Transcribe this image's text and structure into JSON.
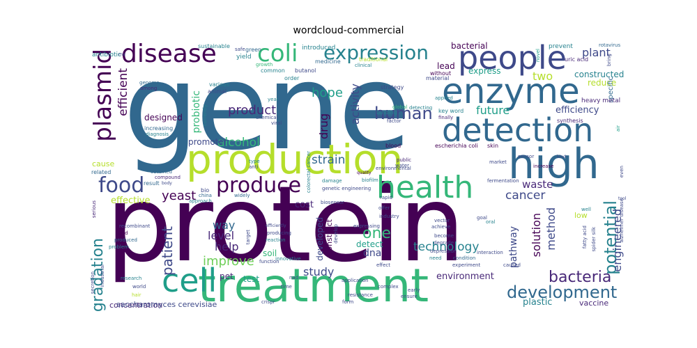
{
  "title": "wordcloud-commercial",
  "colors": {
    "purple": "#440154",
    "indigo": "#482878",
    "blue": "#3e4989",
    "steel": "#31688e",
    "teal": "#26828e",
    "seagreen": "#1f9e89",
    "green": "#35b779",
    "lime": "#6ece58",
    "yellowgreen": "#b5de2b",
    "yellow": "#fde725"
  },
  "words": [
    {
      "text": "gene"
    },
    {
      "text": "protein"
    },
    {
      "text": "treatment"
    },
    {
      "text": "production"
    },
    {
      "text": "enzyme"
    },
    {
      "text": "people"
    },
    {
      "text": "detection"
    },
    {
      "text": "high"
    },
    {
      "text": "health"
    },
    {
      "text": "cell"
    },
    {
      "text": "disease"
    },
    {
      "text": "coli"
    },
    {
      "text": "expression"
    },
    {
      "text": "plasmid"
    },
    {
      "text": "food"
    },
    {
      "text": "produce"
    },
    {
      "text": "human"
    },
    {
      "text": "product"
    },
    {
      "text": "bacteria"
    },
    {
      "text": "development"
    },
    {
      "text": "potential"
    },
    {
      "text": "degradation"
    },
    {
      "text": "patient"
    },
    {
      "text": "technology"
    },
    {
      "text": "cancer"
    },
    {
      "text": "yeast"
    },
    {
      "text": "one"
    },
    {
      "text": "strain"
    },
    {
      "text": "alcohol"
    },
    {
      "text": "hope"
    },
    {
      "text": "future"
    },
    {
      "text": "efficiency"
    },
    {
      "text": "plant"
    },
    {
      "text": "two"
    },
    {
      "text": "efficient"
    },
    {
      "text": "drug"
    },
    {
      "text": "activity"
    },
    {
      "text": "way"
    },
    {
      "text": "level"
    },
    {
      "text": "help"
    },
    {
      "text": "improve"
    },
    {
      "text": "study"
    },
    {
      "text": "dna"
    },
    {
      "text": "solution"
    },
    {
      "text": "method"
    },
    {
      "text": "engineered"
    },
    {
      "text": "pathway"
    },
    {
      "text": "waste"
    },
    {
      "text": "environment"
    },
    {
      "text": "vaccine"
    },
    {
      "text": "plastic"
    },
    {
      "text": "concentration"
    },
    {
      "text": "designed"
    },
    {
      "text": "probiotic"
    },
    {
      "text": "constructed"
    },
    {
      "text": "reduce"
    },
    {
      "text": "effective"
    },
    {
      "text": "lead"
    },
    {
      "text": "express"
    },
    {
      "text": "promoter"
    },
    {
      "text": "cost"
    },
    {
      "text": "developed"
    },
    {
      "text": "detect"
    },
    {
      "text": "test"
    },
    {
      "text": "soil"
    },
    {
      "text": "pet"
    },
    {
      "text": "cause"
    },
    {
      "text": "bacterial"
    },
    {
      "text": "low"
    },
    {
      "text": "specific"
    },
    {
      "text": "saccharomyces cerevisiae"
    },
    {
      "text": "heavy metal"
    },
    {
      "text": "construct"
    },
    {
      "text": "antibiotic"
    },
    {
      "text": "sustainable"
    },
    {
      "text": "introduced"
    },
    {
      "text": "prevent"
    },
    {
      "text": "uric acid"
    },
    {
      "text": "rotavirus"
    },
    {
      "text": "novel"
    },
    {
      "text": "yield"
    },
    {
      "text": "green"
    },
    {
      "text": "growth"
    },
    {
      "text": "common"
    },
    {
      "text": "butanol"
    },
    {
      "text": "medicine"
    },
    {
      "text": "traditional"
    },
    {
      "text": "clinical"
    },
    {
      "text": "without"
    },
    {
      "text": "material"
    },
    {
      "text": "strategy"
    },
    {
      "text": "genome"
    },
    {
      "text": "among"
    },
    {
      "text": "various"
    },
    {
      "text": "animal"
    },
    {
      "text": "order"
    },
    {
      "text": "applied"
    },
    {
      "text": "key word"
    },
    {
      "text": "finally"
    },
    {
      "text": "global"
    },
    {
      "text": "detecting"
    },
    {
      "text": "factor"
    },
    {
      "text": "binding"
    },
    {
      "text": "display"
    },
    {
      "text": "blood"
    },
    {
      "text": "escherichia coli"
    },
    {
      "text": "skin"
    },
    {
      "text": "sensor"
    },
    {
      "text": "increase"
    },
    {
      "text": "kind"
    },
    {
      "text": "synthesis"
    },
    {
      "text": "year"
    },
    {
      "text": "chemical"
    },
    {
      "text": "viral"
    },
    {
      "text": "currently"
    },
    {
      "text": "increasing"
    },
    {
      "text": "diagnosis"
    },
    {
      "text": "rna"
    },
    {
      "text": "type"
    },
    {
      "text": "anti"
    },
    {
      "text": "related"
    },
    {
      "text": "obtained"
    },
    {
      "text": "compound"
    },
    {
      "text": "result"
    },
    {
      "text": "body"
    },
    {
      "text": "bio"
    },
    {
      "text": "colorectal cancer"
    },
    {
      "text": "environmental"
    },
    {
      "text": "public"
    },
    {
      "text": "water"
    },
    {
      "text": "quality"
    },
    {
      "text": "damage"
    },
    {
      "text": "biofilm"
    },
    {
      "text": "fermentation"
    },
    {
      "text": "market"
    },
    {
      "text": "air"
    },
    {
      "text": "genetic engineering"
    },
    {
      "text": "china"
    },
    {
      "text": "widely"
    },
    {
      "text": "approach"
    },
    {
      "text": "biosensor"
    },
    {
      "text": "rapid"
    },
    {
      "text": "well"
    },
    {
      "text": "tool"
    },
    {
      "text": "oral"
    },
    {
      "text": "serious"
    },
    {
      "text": "recombinant"
    },
    {
      "text": "acid"
    },
    {
      "text": "produced"
    },
    {
      "text": "problem"
    },
    {
      "text": "target"
    },
    {
      "text": "efficiently"
    },
    {
      "text": "producing"
    },
    {
      "text": "reaction"
    },
    {
      "text": "function"
    },
    {
      "text": "innovative"
    },
    {
      "text": "develop"
    },
    {
      "text": "expressing"
    },
    {
      "text": "industry"
    },
    {
      "text": "offer"
    },
    {
      "text": "achieve"
    },
    {
      "text": "vector"
    },
    {
      "text": "become"
    },
    {
      "text": "degrade"
    },
    {
      "text": "depression"
    },
    {
      "text": "need"
    },
    {
      "text": "condition"
    },
    {
      "text": "experiment"
    },
    {
      "text": "interaction"
    },
    {
      "text": "fatty acid"
    },
    {
      "text": "spider silk"
    },
    {
      "text": "alzheimer disease"
    },
    {
      "text": "caused"
    },
    {
      "text": "goal"
    },
    {
      "text": "industrial"
    },
    {
      "text": "secretion"
    },
    {
      "text": "research"
    },
    {
      "text": "world"
    },
    {
      "text": "hair"
    },
    {
      "text": "crispr"
    },
    {
      "text": "time"
    },
    {
      "text": "nad"
    },
    {
      "text": "application"
    },
    {
      "text": "effect"
    },
    {
      "text": "complex"
    },
    {
      "text": "resistance"
    },
    {
      "text": "form"
    },
    {
      "text": "early"
    },
    {
      "text": "ensure"
    },
    {
      "text": "safe"
    },
    {
      "text": "bring"
    },
    {
      "text": "even"
    }
  ]
}
